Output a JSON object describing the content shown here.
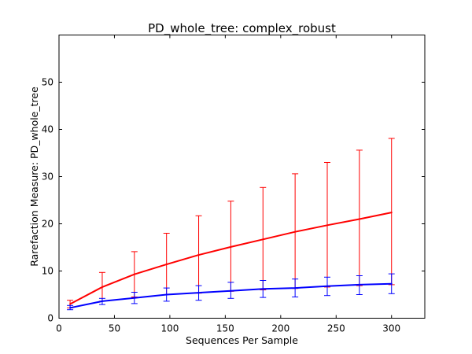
{
  "chart_data": {
    "type": "line",
    "title": "PD_whole_tree: complex_robust",
    "xlabel": "Sequences Per Sample",
    "ylabel": "Rarefaction Measure: PD_whole_tree",
    "xlim": [
      0,
      330
    ],
    "ylim": [
      0,
      60
    ],
    "xticks": [
      0,
      50,
      100,
      150,
      200,
      250,
      300
    ],
    "yticks": [
      0,
      10,
      20,
      30,
      40,
      50
    ],
    "grid": false,
    "legend": "none",
    "x": [
      10,
      39,
      68,
      97,
      126,
      155,
      184,
      213,
      242,
      271,
      300
    ],
    "series": [
      {
        "color": "#ff0000",
        "values": [
          3.0,
          6.6,
          9.3,
          11.4,
          13.4,
          15.1,
          16.7,
          18.3,
          19.7,
          21.0,
          22.4
        ],
        "err_low": [
          2.2,
          3.6,
          4.5,
          5.0,
          5.3,
          5.7,
          6.0,
          6.3,
          6.6,
          6.9,
          7.1
        ],
        "err_high": [
          3.8,
          9.7,
          14.1,
          18.0,
          21.7,
          24.8,
          27.7,
          30.6,
          33.0,
          35.6,
          38.1
        ]
      },
      {
        "color": "#0000ff",
        "values": [
          2.2,
          3.6,
          4.3,
          5.0,
          5.4,
          5.8,
          6.2,
          6.4,
          6.8,
          7.1,
          7.3
        ],
        "err_low": [
          1.8,
          2.9,
          3.1,
          3.6,
          3.8,
          4.2,
          4.4,
          4.5,
          4.8,
          5.0,
          5.2
        ],
        "err_high": [
          2.7,
          4.2,
          5.5,
          6.4,
          6.9,
          7.6,
          8.0,
          8.3,
          8.7,
          9.0,
          9.4
        ]
      }
    ]
  }
}
